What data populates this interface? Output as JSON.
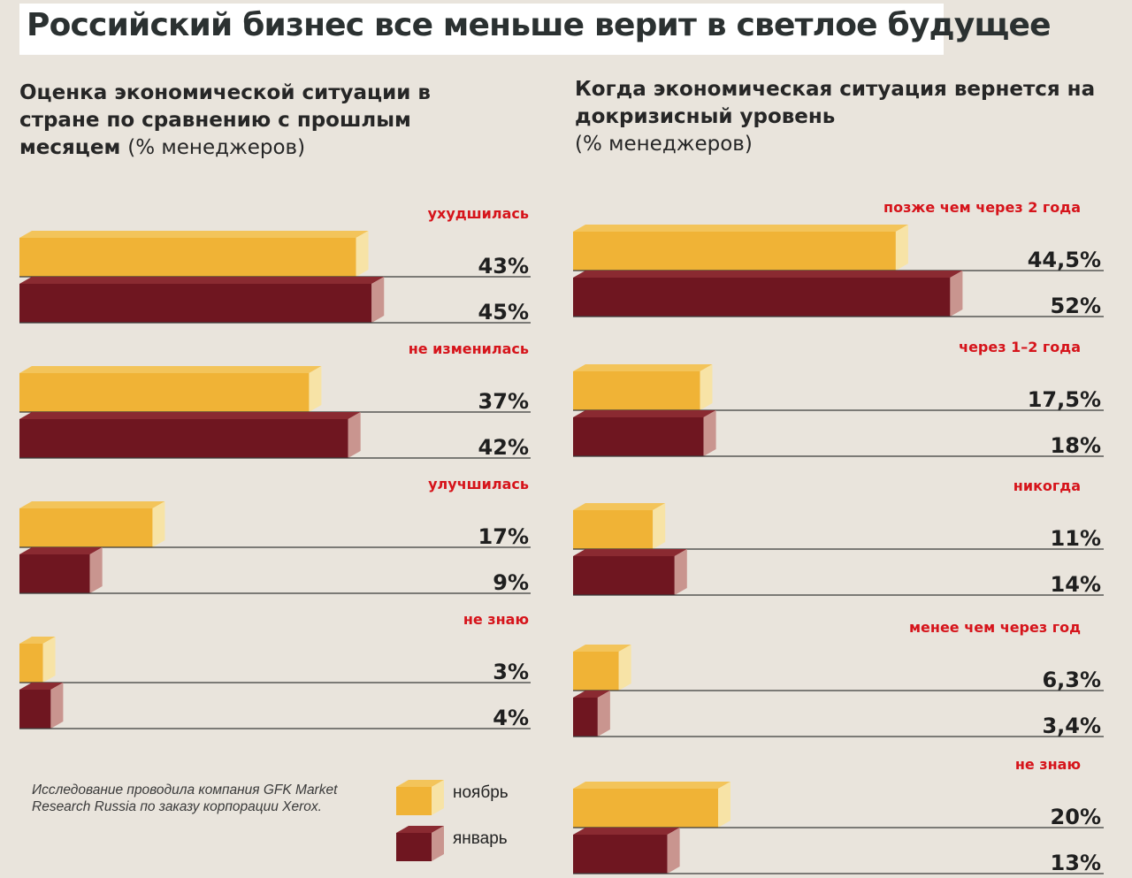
{
  "title": "Российский бизнес все меньше верит в светлое будущее",
  "legend": {
    "november": "ноябрь",
    "january": "январь"
  },
  "colors": {
    "november": "#f0b336",
    "january": "#6f1620",
    "category_label": "#d6141b"
  },
  "source_note": "Исследование проводила компания GFK Market Research Russia по заказу корпорации Xerox.",
  "chart_data": [
    {
      "type": "bar",
      "orientation": "horizontal",
      "title": "Оценка экономической ситуации в стране по сравнению с прошлым месяцем",
      "unit": "(% менеджеров)",
      "categories": [
        "ухудшилась",
        "не изменилась",
        "улучшилась",
        "не знаю"
      ],
      "series": [
        {
          "name": "ноябрь",
          "values": [
            43,
            37,
            17,
            3
          ],
          "labels": [
            "43%",
            "37%",
            "17%",
            "3%"
          ]
        },
        {
          "name": "январь",
          "values": [
            45,
            42,
            9,
            4
          ],
          "labels": [
            "45%",
            "42%",
            "9%",
            "4%"
          ]
        }
      ]
    },
    {
      "type": "bar",
      "orientation": "horizontal",
      "title": "Когда экономическая ситуация вернется на докризисный уровень",
      "unit": "(% менеджеров)",
      "categories": [
        "позже чем через 2 года",
        "через 1–2 года",
        "никогда",
        "менее чем через год",
        "не знаю"
      ],
      "series": [
        {
          "name": "ноябрь",
          "values": [
            44.5,
            17.5,
            11,
            6.3,
            20
          ],
          "labels": [
            "44,5%",
            "17,5%",
            "11%",
            "6,3%",
            "20%"
          ]
        },
        {
          "name": "январь",
          "values": [
            52,
            18,
            14,
            3.4,
            13
          ],
          "labels": [
            "52%",
            "18%",
            "14%",
            "3,4%",
            "13%"
          ]
        }
      ]
    }
  ]
}
